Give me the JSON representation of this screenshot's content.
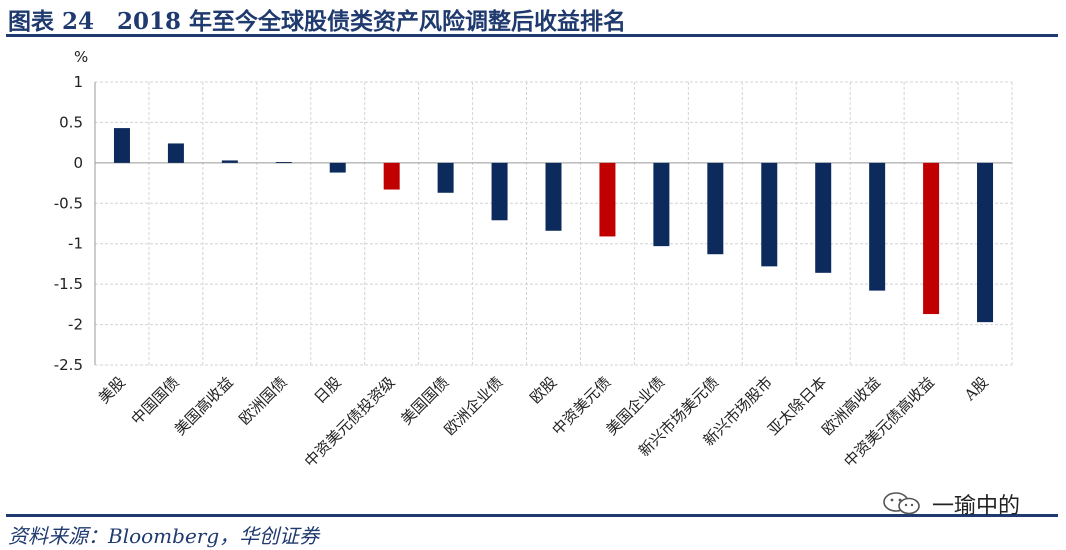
{
  "header": {
    "title": "图表 24　2018 年至今全球股债类资产风险调整后收益排名"
  },
  "footer": {
    "source": "资料来源：Bloomberg，华创证券"
  },
  "watermark": {
    "text": "一瑜中的",
    "icon": "wechat-icon"
  },
  "colors": {
    "navy": "#0d2a5c",
    "red": "#c00000",
    "rule": "#1f3a6e",
    "grid": "#d4d4d4"
  },
  "chart_data": {
    "type": "bar",
    "ylabel": "%",
    "ylim": [
      -2.5,
      1
    ],
    "yticks": [
      1,
      0.5,
      0,
      -0.5,
      -1,
      -1.5,
      -2,
      -2.5
    ],
    "ytick_labels": [
      "1",
      "0.5",
      "0",
      "-0.5",
      "-1",
      "-1.5",
      "-2",
      "-2.5"
    ],
    "grid": true,
    "categories": [
      "美股",
      "中国国债",
      "美国高收益",
      "欧洲国债",
      "日股",
      "中资美元债投资级",
      "美国国债",
      "欧洲企业债",
      "欧股",
      "中资美元债",
      "美国企业债",
      "新兴市场美元债",
      "新兴市场股市",
      "亚太除日本",
      "欧洲高收益",
      "中资美元债高收益",
      "A股"
    ],
    "values": [
      0.43,
      0.24,
      0.03,
      0.01,
      -0.12,
      -0.33,
      -0.37,
      -0.71,
      -0.84,
      -0.91,
      -1.03,
      -1.13,
      -1.28,
      -1.36,
      -1.58,
      -1.87,
      -1.97
    ],
    "highlight": [
      false,
      false,
      false,
      false,
      false,
      true,
      false,
      false,
      false,
      true,
      false,
      false,
      false,
      false,
      false,
      true,
      false
    ]
  }
}
